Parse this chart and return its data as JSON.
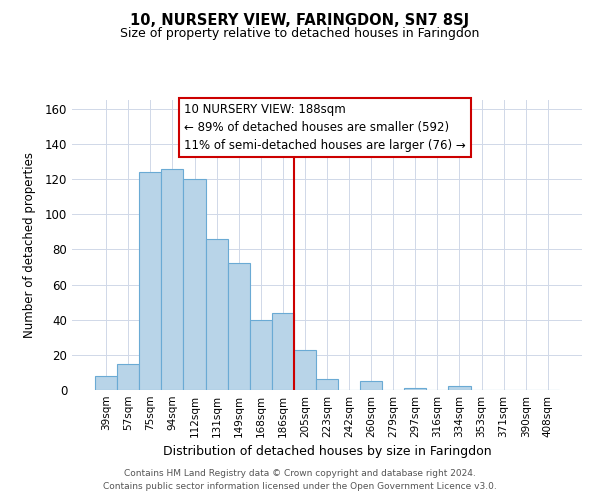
{
  "title": "10, NURSERY VIEW, FARINGDON, SN7 8SJ",
  "subtitle": "Size of property relative to detached houses in Faringdon",
  "xlabel": "Distribution of detached houses by size in Faringdon",
  "ylabel": "Number of detached properties",
  "footer_line1": "Contains HM Land Registry data © Crown copyright and database right 2024.",
  "footer_line2": "Contains public sector information licensed under the Open Government Licence v3.0.",
  "bar_labels": [
    "39sqm",
    "57sqm",
    "75sqm",
    "94sqm",
    "112sqm",
    "131sqm",
    "149sqm",
    "168sqm",
    "186sqm",
    "205sqm",
    "223sqm",
    "242sqm",
    "260sqm",
    "279sqm",
    "297sqm",
    "316sqm",
    "334sqm",
    "353sqm",
    "371sqm",
    "390sqm",
    "408sqm"
  ],
  "bar_values": [
    8,
    15,
    124,
    126,
    120,
    86,
    72,
    40,
    44,
    23,
    6,
    0,
    5,
    0,
    1,
    0,
    2,
    0,
    0,
    0,
    0
  ],
  "bar_color": "#b8d4e8",
  "bar_edge_color": "#6aaad4",
  "vline_index": 8,
  "vline_color": "#cc0000",
  "annotation_title": "10 NURSERY VIEW: 188sqm",
  "annotation_line1": "← 89% of detached houses are smaller (592)",
  "annotation_line2": "11% of semi-detached houses are larger (76) →",
  "annotation_box_edge": "#cc0000",
  "ylim": [
    0,
    165
  ],
  "yticks": [
    0,
    20,
    40,
    60,
    80,
    100,
    120,
    140,
    160
  ],
  "background_color": "#ffffff",
  "grid_color": "#d0d8e8"
}
